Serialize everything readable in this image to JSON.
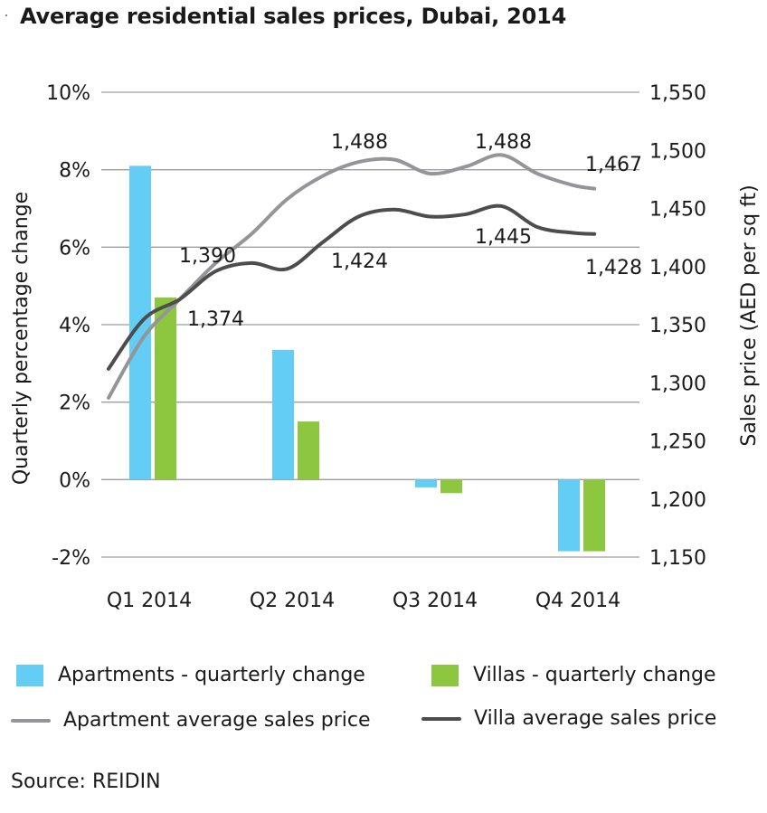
{
  "title": "Average residential sales prices, Dubai, 2014",
  "source": "Source: REIDIN",
  "colors": {
    "apartment_bar": "#63cdf5",
    "villa_bar": "#8dc63f",
    "apartment_line": "#939598",
    "villa_line": "#4d4d4f",
    "grid": "#9e9e9e"
  },
  "legend": {
    "apartments_change": "Apartments - quarterly change",
    "villas_change": "Villas - quarterly change",
    "apartment_price": "Apartment average sales price",
    "villa_price": "Villa average sales price"
  },
  "chart_data": {
    "type": "bar",
    "categories": [
      "Q1 2014",
      "Q2 2014",
      "Q3 2014",
      "Q4 2014"
    ],
    "ylabel": "Quarterly percentage change",
    "y2label": "Sales price (AED per sq ft)",
    "ylim": [
      -2,
      10
    ],
    "y2lim": [
      1150,
      1550
    ],
    "yticks": [
      "-2%",
      "0%",
      "2%",
      "4%",
      "6%",
      "8%",
      "10%"
    ],
    "y2ticks": [
      "1,150",
      "1,200",
      "1,250",
      "1,300",
      "1,350",
      "1,400",
      "1,450",
      "1,500",
      "1,550"
    ],
    "grid": true,
    "bar_series": [
      {
        "name": "Apartments - quarterly change",
        "values": [
          8.1,
          3.35,
          -0.2,
          -1.85
        ]
      },
      {
        "name": "Villas - quarterly change",
        "values": [
          4.7,
          1.5,
          -0.35,
          -1.85
        ]
      }
    ],
    "line_series": [
      {
        "name": "Apartment average sales price",
        "x": [
          0.0,
          0.25,
          0.5,
          0.75,
          1.0,
          1.25,
          1.5,
          1.75,
          2.0,
          2.25,
          2.5,
          2.75,
          3.0,
          3.25,
          3.4
        ],
        "values": [
          1287,
          1340,
          1372,
          1403,
          1428,
          1458,
          1478,
          1490,
          1492,
          1480,
          1486,
          1496,
          1480,
          1470,
          1467
        ]
      },
      {
        "name": "Villa average sales price",
        "x": [
          0.0,
          0.25,
          0.5,
          0.75,
          1.0,
          1.25,
          1.5,
          1.75,
          2.0,
          2.25,
          2.5,
          2.75,
          3.0,
          3.25,
          3.4
        ],
        "values": [
          1312,
          1355,
          1372,
          1396,
          1403,
          1398,
          1421,
          1443,
          1449,
          1443,
          1445,
          1452,
          1434,
          1429,
          1428
        ]
      }
    ],
    "annotations": [
      {
        "text": "1,390",
        "x": 0.5,
        "value": 1390
      },
      {
        "text": "1,374",
        "x": 0.62,
        "value": 1374
      },
      {
        "text": "1,488",
        "x": 1.75,
        "value": 1488
      },
      {
        "text": "1,424",
        "x": 1.75,
        "value": 1424
      },
      {
        "text": "1,488",
        "x": 2.75,
        "value": 1488
      },
      {
        "text": "1,445",
        "x": 2.75,
        "value": 1445
      },
      {
        "text": "1,467",
        "x": 3.3,
        "value": 1467
      },
      {
        "text": "1,428",
        "x": 3.3,
        "value": 1428
      }
    ]
  }
}
